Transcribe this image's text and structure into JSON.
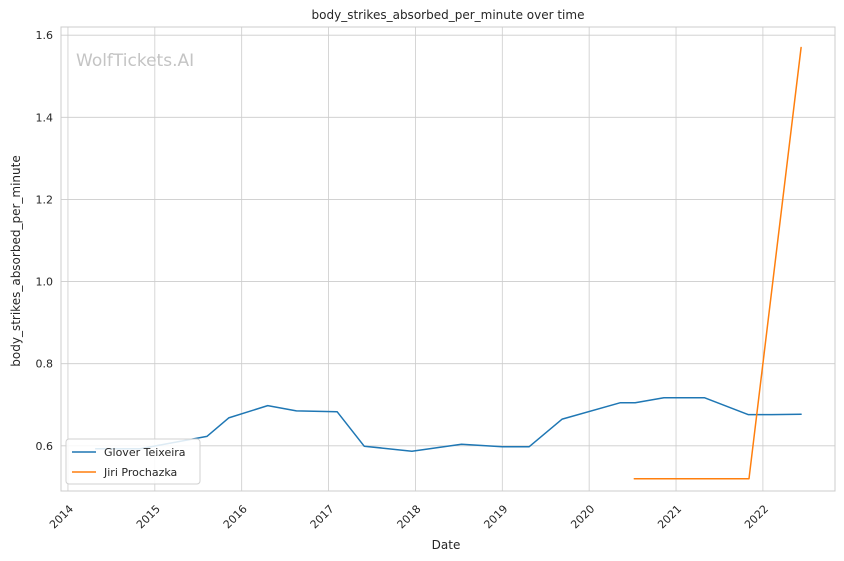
{
  "chart_data": {
    "type": "line",
    "title": "body_strikes_absorbed_per_minute over time",
    "xlabel": "Date",
    "ylabel": "body_strikes_absorbed_per_minute",
    "watermark": "WolfTickets.AI",
    "xlim": [
      2013.92,
      2022.83
    ],
    "ylim": [
      0.49,
      1.62
    ],
    "x_ticks": [
      2014,
      2015,
      2016,
      2017,
      2018,
      2019,
      2020,
      2021,
      2022
    ],
    "x_tick_labels": [
      "2014",
      "2015",
      "2016",
      "2017",
      "2018",
      "2019",
      "2020",
      "2021",
      "2022"
    ],
    "y_ticks": [
      0.6,
      0.8,
      1.0,
      1.2,
      1.4,
      1.6
    ],
    "y_tick_labels": [
      "0.6",
      "0.8",
      "1.0",
      "1.2",
      "1.4",
      "1.6"
    ],
    "grid": true,
    "legend_position": "lower-left",
    "series": [
      {
        "name": "Glover Teixeira",
        "color": "#1f77b4",
        "x": [
          2014.32,
          2014.83,
          2015.6,
          2015.85,
          2016.3,
          2016.63,
          2017.1,
          2017.41,
          2017.96,
          2018.53,
          2019.0,
          2019.31,
          2019.69,
          2020.36,
          2020.53,
          2020.86,
          2021.33,
          2021.83,
          2022.1,
          2022.44
        ],
        "y": [
          0.593,
          0.593,
          0.623,
          0.668,
          0.698,
          0.685,
          0.683,
          0.599,
          0.587,
          0.604,
          0.598,
          0.598,
          0.665,
          0.705,
          0.705,
          0.717,
          0.717,
          0.676,
          0.676,
          0.677
        ]
      },
      {
        "name": "Jiri Prochazka",
        "color": "#ff7f0e",
        "x": [
          2020.52,
          2021.84,
          2022.44
        ],
        "y": [
          0.52,
          0.52,
          1.57
        ]
      }
    ]
  }
}
